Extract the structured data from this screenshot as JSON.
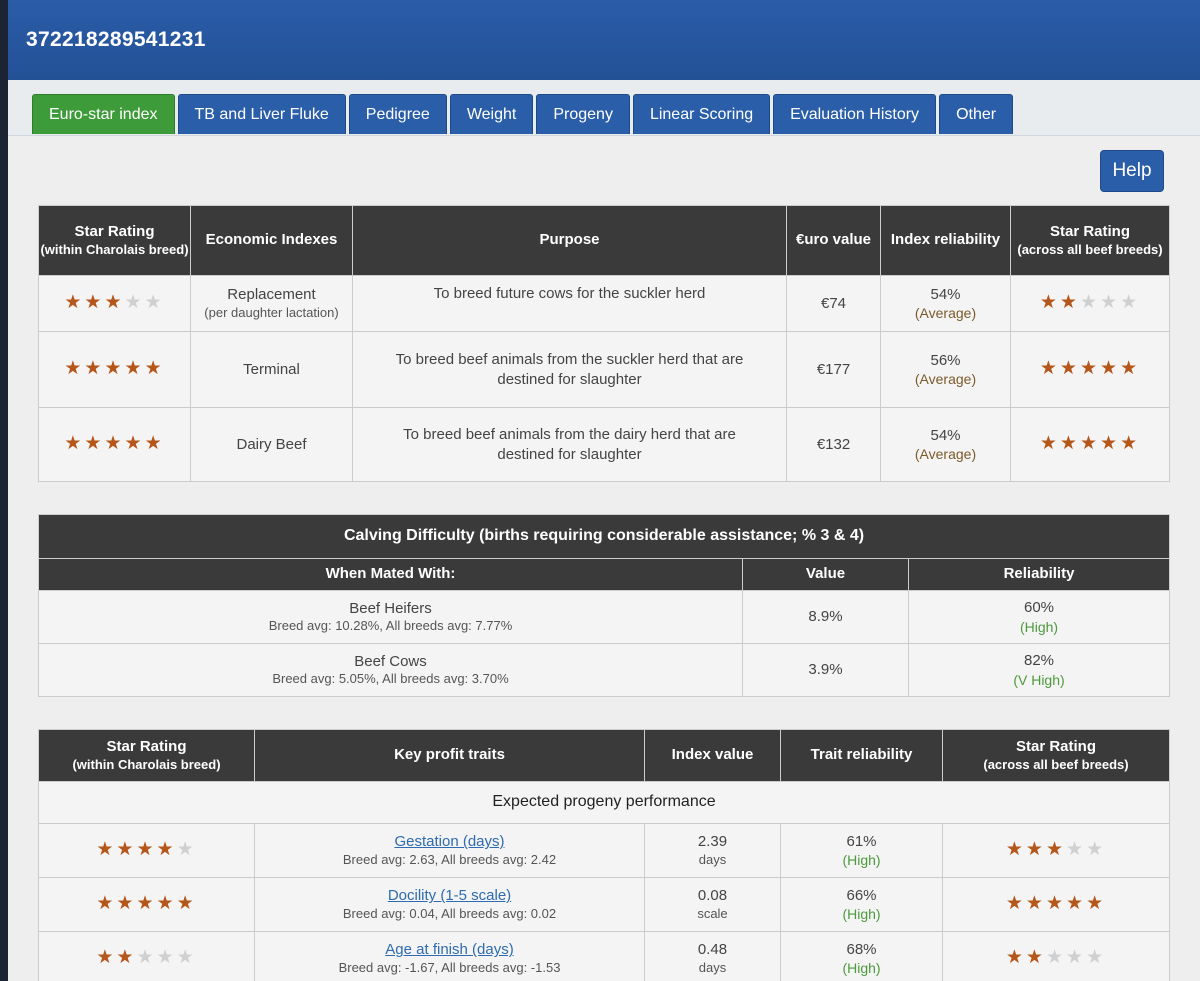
{
  "header": {
    "animal_id": "372218289541231"
  },
  "tabs": [
    {
      "label": "Euro-star index",
      "active": true
    },
    {
      "label": "TB and Liver Fluke"
    },
    {
      "label": "Pedigree"
    },
    {
      "label": "Weight"
    },
    {
      "label": "Progeny"
    },
    {
      "label": "Linear Scoring"
    },
    {
      "label": "Evaluation History"
    },
    {
      "label": "Other"
    }
  ],
  "help_label": "Help",
  "euro_table": {
    "headers": {
      "star_within_title": "Star Rating",
      "star_within_sub": "(within Charolais breed)",
      "economic": "Economic Indexes",
      "purpose": "Purpose",
      "euro_value": "€uro value",
      "index_reliability": "Index reliability",
      "star_across_title": "Star Rating",
      "star_across_sub": "(across all beef breeds)"
    },
    "rows": [
      {
        "stars_within": 3,
        "index": "Replacement",
        "index_sub": "(per daughter lactation)",
        "purpose": "To breed future cows for the suckler herd",
        "value": "€74",
        "reliability": "54%",
        "reliability_cat": "(Average)",
        "stars_across": 2
      },
      {
        "stars_within": 5,
        "index": "Terminal",
        "index_sub": "",
        "purpose": "To breed beef animals from the suckler herd that are destined for slaughter",
        "value": "€177",
        "reliability": "56%",
        "reliability_cat": "(Average)",
        "stars_across": 5
      },
      {
        "stars_within": 5,
        "index": "Dairy Beef",
        "index_sub": "",
        "purpose": "To breed beef animals from the dairy herd that are destined for slaughter",
        "value": "€132",
        "reliability": "54%",
        "reliability_cat": "(Average)",
        "stars_across": 5
      }
    ]
  },
  "calving": {
    "title": "Calving Difficulty (births requiring considerable assistance; % 3 & 4)",
    "headers": {
      "mated_with": "When Mated With:",
      "value": "Value",
      "reliability": "Reliability"
    },
    "rows": [
      {
        "name": "Beef Heifers",
        "avg": "Breed avg: 10.28%, All breeds avg: 7.77%",
        "value": "8.9%",
        "reliability": "60%",
        "reliability_cat": "(High)"
      },
      {
        "name": "Beef Cows",
        "avg": "Breed avg: 5.05%, All breeds avg: 3.70%",
        "value": "3.9%",
        "reliability": "82%",
        "reliability_cat": "(V High)"
      }
    ]
  },
  "traits": {
    "headers": {
      "star_within_title": "Star Rating",
      "star_within_sub": "(within Charolais breed)",
      "key_traits": "Key profit traits",
      "index_value": "Index value",
      "trait_reliability": "Trait reliability",
      "star_across_title": "Star Rating",
      "star_across_sub": "(across all beef breeds)"
    },
    "section_label": "Expected progeny performance",
    "rows": [
      {
        "stars_within": 4,
        "trait": "Gestation (days)",
        "avg": "Breed avg: 2.63, All breeds avg: 2.42",
        "value": "2.39",
        "unit": "days",
        "reliability": "61%",
        "reliability_cat": "(High)",
        "stars_across": 3
      },
      {
        "stars_within": 5,
        "trait": "Docility (1-5 scale)",
        "avg": "Breed avg: 0.04, All breeds avg: 0.02",
        "value": "0.08",
        "unit": "scale",
        "reliability": "66%",
        "reliability_cat": "(High)",
        "stars_across": 5
      },
      {
        "stars_within": 2,
        "trait": "Age at finish (days)",
        "avg": "Breed avg: -1.67, All breeds avg: -1.53",
        "value": "0.48",
        "unit": "days",
        "reliability": "68%",
        "reliability_cat": "(High)",
        "stars_across": 2
      }
    ]
  }
}
